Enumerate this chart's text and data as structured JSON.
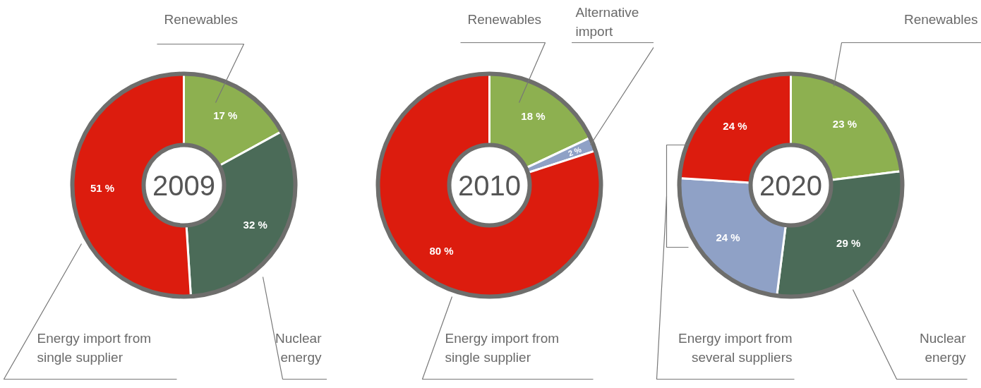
{
  "chart_data": [
    {
      "type": "donut",
      "title": "2009",
      "categories": [
        "Renewables",
        "Nuclear energy",
        "Energy import from single supplier"
      ],
      "values": [
        17,
        32,
        51
      ],
      "colors": [
        "#8db050",
        "#4b6b58",
        "#dc1c0e"
      ],
      "value_labels": [
        "17 %",
        "32 %",
        "51 %"
      ]
    },
    {
      "type": "donut",
      "title": "2010",
      "categories": [
        "Renewables",
        "Alternative import",
        "Energy import from single supplier"
      ],
      "values": [
        18,
        2,
        80
      ],
      "colors": [
        "#8db050",
        "#8fa1c6",
        "#dc1c0e"
      ],
      "value_labels": [
        "18 %",
        "2 %",
        "80 %"
      ]
    },
    {
      "type": "donut",
      "title": "2020",
      "categories": [
        "Renewables",
        "Nuclear energy",
        "Energy import from several suppliers",
        null
      ],
      "values": [
        23,
        29,
        24,
        24
      ],
      "colors": [
        "#8db050",
        "#4b6b58",
        "#8fa1c6",
        "#dc1c0e"
      ],
      "value_labels": [
        "23 %",
        "29 %",
        "24 %",
        "24 %"
      ]
    }
  ]
}
